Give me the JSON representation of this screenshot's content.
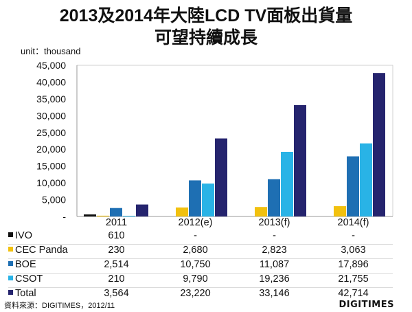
{
  "chart_data": {
    "type": "bar",
    "title": "2013及2014年大陸LCD TV面板出貨量",
    "subtitle": "可望持續成長",
    "ylabel": "unit：thousand",
    "xlabel": "",
    "ylim": [
      0,
      45000
    ],
    "yticks": [
      "-",
      "5,000",
      "10,000",
      "15,000",
      "20,000",
      "25,000",
      "30,000",
      "35,000",
      "40,000",
      "45,000"
    ],
    "ytick_values": [
      0,
      5000,
      10000,
      15000,
      20000,
      25000,
      30000,
      35000,
      40000,
      45000
    ],
    "categories": [
      "2011",
      "2012(e)",
      "2013(f)",
      "2014(f)"
    ],
    "grid": false,
    "legend": "table-bottom",
    "series": [
      {
        "name": "IVO",
        "color": "#111111",
        "values": [
          610,
          null,
          null,
          null
        ],
        "labels": [
          "610",
          "-",
          "-",
          "-"
        ]
      },
      {
        "name": "CEC Panda",
        "color": "#f2c10e",
        "values": [
          230,
          2680,
          2823,
          3063
        ],
        "labels": [
          "230",
          "2,680",
          "2,823",
          "3,063"
        ]
      },
      {
        "name": "BOE",
        "color": "#1e6fb3",
        "values": [
          2514,
          10750,
          11087,
          17896
        ],
        "labels": [
          "2,514",
          "10,750",
          "11,087",
          "17,896"
        ]
      },
      {
        "name": "CSOT",
        "color": "#29b3e6",
        "values": [
          210,
          9790,
          19236,
          21755
        ],
        "labels": [
          "210",
          "9,790",
          "19,236",
          "21,755"
        ]
      },
      {
        "name": "Total",
        "color": "#25246e",
        "values": [
          3564,
          23220,
          33146,
          42714
        ],
        "labels": [
          "3,564",
          "23,220",
          "33,146",
          "42,714"
        ]
      }
    ]
  },
  "source": "資料來源：DIGITIMES，2012/11",
  "logo": "DIGITIMES"
}
